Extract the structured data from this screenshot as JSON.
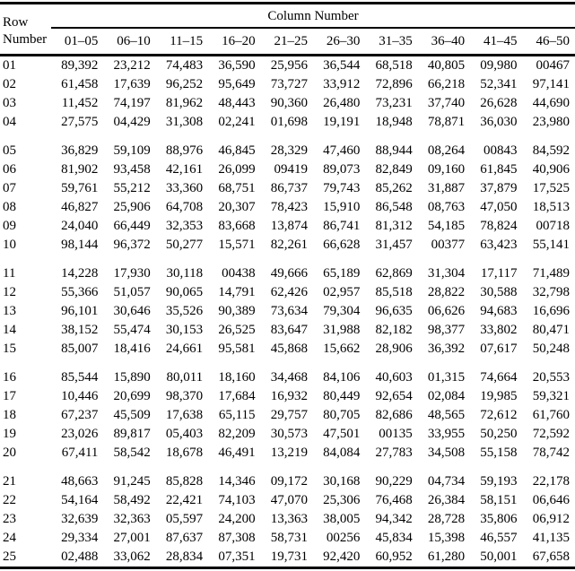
{
  "colors": {
    "text": "#000000",
    "background": "#ffffff",
    "rule": "#000000"
  },
  "table": {
    "row_header_line1": "Row",
    "row_header_line2": "Number",
    "column_group_label": "Column Number",
    "columns": [
      "01–05",
      "06–10",
      "11–15",
      "16–20",
      "21–25",
      "26–30",
      "31–35",
      "36–40",
      "41–45",
      "46–50"
    ],
    "group_starts": [
      "05",
      "11",
      "16",
      "21"
    ],
    "rows": [
      {
        "id": "01",
        "values": [
          "89,392",
          "23,212",
          "74,483",
          "36,590",
          "25,956",
          "36,544",
          "68,518",
          "40,805",
          "09,980",
          "00467"
        ]
      },
      {
        "id": "02",
        "values": [
          "61,458",
          "17,639",
          "96,252",
          "95,649",
          "73,727",
          "33,912",
          "72,896",
          "66,218",
          "52,341",
          "97,141"
        ]
      },
      {
        "id": "03",
        "values": [
          "11,452",
          "74,197",
          "81,962",
          "48,443",
          "90,360",
          "26,480",
          "73,231",
          "37,740",
          "26,628",
          "44,690"
        ]
      },
      {
        "id": "04",
        "values": [
          "27,575",
          "04,429",
          "31,308",
          "02,241",
          "01,698",
          "19,191",
          "18,948",
          "78,871",
          "36,030",
          "23,980"
        ]
      },
      {
        "id": "05",
        "values": [
          "36,829",
          "59,109",
          "88,976",
          "46,845",
          "28,329",
          "47,460",
          "88,944",
          "08,264",
          "00843",
          "84,592"
        ]
      },
      {
        "id": "06",
        "values": [
          "81,902",
          "93,458",
          "42,161",
          "26,099",
          "09419",
          "89,073",
          "82,849",
          "09,160",
          "61,845",
          "40,906"
        ]
      },
      {
        "id": "07",
        "values": [
          "59,761",
          "55,212",
          "33,360",
          "68,751",
          "86,737",
          "79,743",
          "85,262",
          "31,887",
          "37,879",
          "17,525"
        ]
      },
      {
        "id": "08",
        "values": [
          "46,827",
          "25,906",
          "64,708",
          "20,307",
          "78,423",
          "15,910",
          "86,548",
          "08,763",
          "47,050",
          "18,513"
        ]
      },
      {
        "id": "09",
        "values": [
          "24,040",
          "66,449",
          "32,353",
          "83,668",
          "13,874",
          "86,741",
          "81,312",
          "54,185",
          "78,824",
          "00718"
        ]
      },
      {
        "id": "10",
        "values": [
          "98,144",
          "96,372",
          "50,277",
          "15,571",
          "82,261",
          "66,628",
          "31,457",
          "00377",
          "63,423",
          "55,141"
        ]
      },
      {
        "id": "11",
        "values": [
          "14,228",
          "17,930",
          "30,118",
          "00438",
          "49,666",
          "65,189",
          "62,869",
          "31,304",
          "17,117",
          "71,489"
        ]
      },
      {
        "id": "12",
        "values": [
          "55,366",
          "51,057",
          "90,065",
          "14,791",
          "62,426",
          "02,957",
          "85,518",
          "28,822",
          "30,588",
          "32,798"
        ]
      },
      {
        "id": "13",
        "values": [
          "96,101",
          "30,646",
          "35,526",
          "90,389",
          "73,634",
          "79,304",
          "96,635",
          "06,626",
          "94,683",
          "16,696"
        ]
      },
      {
        "id": "14",
        "values": [
          "38,152",
          "55,474",
          "30,153",
          "26,525",
          "83,647",
          "31,988",
          "82,182",
          "98,377",
          "33,802",
          "80,471"
        ]
      },
      {
        "id": "15",
        "values": [
          "85,007",
          "18,416",
          "24,661",
          "95,581",
          "45,868",
          "15,662",
          "28,906",
          "36,392",
          "07,617",
          "50,248"
        ]
      },
      {
        "id": "16",
        "values": [
          "85,544",
          "15,890",
          "80,011",
          "18,160",
          "34,468",
          "84,106",
          "40,603",
          "01,315",
          "74,664",
          "20,553"
        ]
      },
      {
        "id": "17",
        "values": [
          "10,446",
          "20,699",
          "98,370",
          "17,684",
          "16,932",
          "80,449",
          "92,654",
          "02,084",
          "19,985",
          "59,321"
        ]
      },
      {
        "id": "18",
        "values": [
          "67,237",
          "45,509",
          "17,638",
          "65,115",
          "29,757",
          "80,705",
          "82,686",
          "48,565",
          "72,612",
          "61,760"
        ]
      },
      {
        "id": "19",
        "values": [
          "23,026",
          "89,817",
          "05,403",
          "82,209",
          "30,573",
          "47,501",
          "00135",
          "33,955",
          "50,250",
          "72,592"
        ]
      },
      {
        "id": "20",
        "values": [
          "67,411",
          "58,542",
          "18,678",
          "46,491",
          "13,219",
          "84,084",
          "27,783",
          "34,508",
          "55,158",
          "78,742"
        ]
      },
      {
        "id": "21",
        "values": [
          "48,663",
          "91,245",
          "85,828",
          "14,346",
          "09,172",
          "30,168",
          "90,229",
          "04,734",
          "59,193",
          "22,178"
        ]
      },
      {
        "id": "22",
        "values": [
          "54,164",
          "58,492",
          "22,421",
          "74,103",
          "47,070",
          "25,306",
          "76,468",
          "26,384",
          "58,151",
          "06,646"
        ]
      },
      {
        "id": "23",
        "values": [
          "32,639",
          "32,363",
          "05,597",
          "24,200",
          "13,363",
          "38,005",
          "94,342",
          "28,728",
          "35,806",
          "06,912"
        ]
      },
      {
        "id": "24",
        "values": [
          "29,334",
          "27,001",
          "87,637",
          "87,308",
          "58,731",
          "00256",
          "45,834",
          "15,398",
          "46,557",
          "41,135"
        ]
      },
      {
        "id": "25",
        "values": [
          "02,488",
          "33,062",
          "28,834",
          "07,351",
          "19,731",
          "92,420",
          "60,952",
          "61,280",
          "50,001",
          "67,658"
        ]
      }
    ]
  }
}
